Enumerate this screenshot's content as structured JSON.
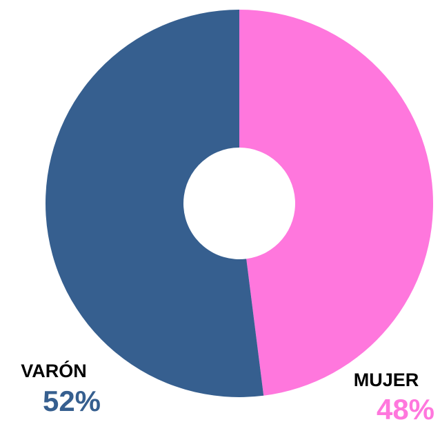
{
  "chart_data": {
    "type": "donut",
    "categories": [
      "MUJER",
      "VARÓN"
    ],
    "values": [
      48,
      52
    ],
    "value_labels": [
      "48%",
      "52%"
    ],
    "colors": [
      "#ff77dd",
      "#365f8f"
    ]
  }
}
